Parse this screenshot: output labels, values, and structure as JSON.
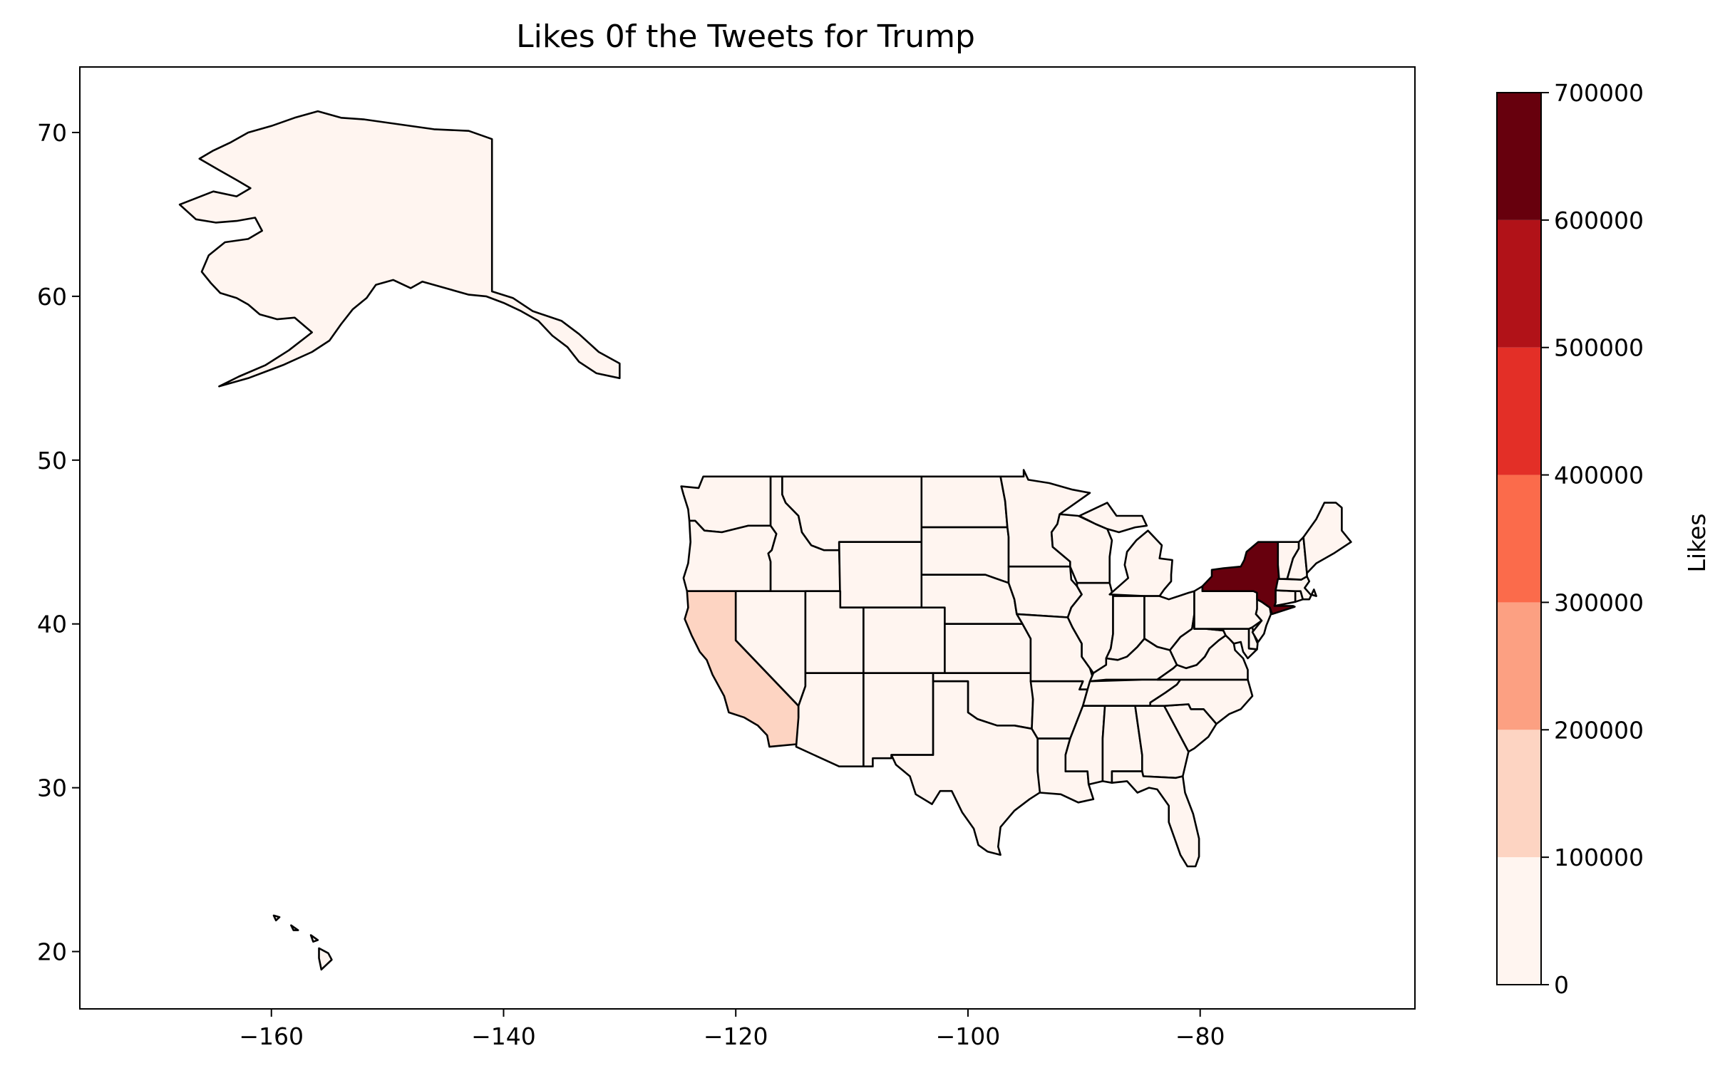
{
  "chart_data": {
    "type": "choropleth",
    "title": "Likes 0f the Tweets for Trump",
    "x_ticks": [
      -160,
      -140,
      -120,
      -100,
      -80
    ],
    "y_ticks": [
      20,
      30,
      40,
      50,
      60,
      70
    ],
    "xlim": [
      -176.5,
      -61.5
    ],
    "ylim": [
      16.5,
      74
    ],
    "colorbar": {
      "label": "Likes",
      "ticks": [
        0,
        100000,
        200000,
        300000,
        400000,
        500000,
        600000,
        700000
      ],
      "range": [
        0,
        700000
      ],
      "bins": [
        {
          "from": 0,
          "to": 100000,
          "color": "#fff5f0"
        },
        {
          "from": 100000,
          "to": 200000,
          "color": "#fdd4c2"
        },
        {
          "from": 200000,
          "to": 300000,
          "color": "#fca082"
        },
        {
          "from": 300000,
          "to": 400000,
          "color": "#fb6b4b"
        },
        {
          "from": 400000,
          "to": 500000,
          "color": "#e32f27"
        },
        {
          "from": 500000,
          "to": 600000,
          "color": "#b11218"
        },
        {
          "from": 600000,
          "to": 700000,
          "color": "#67000d"
        }
      ]
    },
    "regions": [
      {
        "name": "Alaska",
        "value": 0
      },
      {
        "name": "Hawaii",
        "value": 0
      },
      {
        "name": "Washington",
        "value": 0
      },
      {
        "name": "Oregon",
        "value": 0
      },
      {
        "name": "California",
        "value": 150000
      },
      {
        "name": "Nevada",
        "value": 0
      },
      {
        "name": "Idaho",
        "value": 0
      },
      {
        "name": "Montana",
        "value": 0
      },
      {
        "name": "Wyoming",
        "value": 0
      },
      {
        "name": "Utah",
        "value": 0
      },
      {
        "name": "Arizona",
        "value": 0
      },
      {
        "name": "Colorado",
        "value": 0
      },
      {
        "name": "New Mexico",
        "value": 0
      },
      {
        "name": "North Dakota",
        "value": 0
      },
      {
        "name": "South Dakota",
        "value": 0
      },
      {
        "name": "Nebraska",
        "value": 0
      },
      {
        "name": "Kansas",
        "value": 0
      },
      {
        "name": "Oklahoma",
        "value": 0
      },
      {
        "name": "Texas",
        "value": 0
      },
      {
        "name": "Minnesota",
        "value": 0
      },
      {
        "name": "Iowa",
        "value": 0
      },
      {
        "name": "Missouri",
        "value": 0
      },
      {
        "name": "Arkansas",
        "value": 0
      },
      {
        "name": "Louisiana",
        "value": 0
      },
      {
        "name": "Wisconsin",
        "value": 0
      },
      {
        "name": "Illinois",
        "value": 0
      },
      {
        "name": "Michigan",
        "value": 0
      },
      {
        "name": "Indiana",
        "value": 0
      },
      {
        "name": "Ohio",
        "value": 0
      },
      {
        "name": "Kentucky",
        "value": 0
      },
      {
        "name": "Tennessee",
        "value": 0
      },
      {
        "name": "Mississippi",
        "value": 0
      },
      {
        "name": "Alabama",
        "value": 0
      },
      {
        "name": "Georgia",
        "value": 0
      },
      {
        "name": "Florida",
        "value": 0
      },
      {
        "name": "South Carolina",
        "value": 0
      },
      {
        "name": "North Carolina",
        "value": 0
      },
      {
        "name": "Virginia",
        "value": 0
      },
      {
        "name": "West Virginia",
        "value": 0
      },
      {
        "name": "Maryland",
        "value": 0
      },
      {
        "name": "Delaware",
        "value": 0
      },
      {
        "name": "Pennsylvania",
        "value": 0
      },
      {
        "name": "New Jersey",
        "value": 0
      },
      {
        "name": "New York",
        "value": 680000
      },
      {
        "name": "Connecticut",
        "value": 0
      },
      {
        "name": "Rhode Island",
        "value": 0
      },
      {
        "name": "Massachusetts",
        "value": 0
      },
      {
        "name": "Vermont",
        "value": 0
      },
      {
        "name": "New Hampshire",
        "value": 0
      },
      {
        "name": "Maine",
        "value": 0
      }
    ]
  }
}
